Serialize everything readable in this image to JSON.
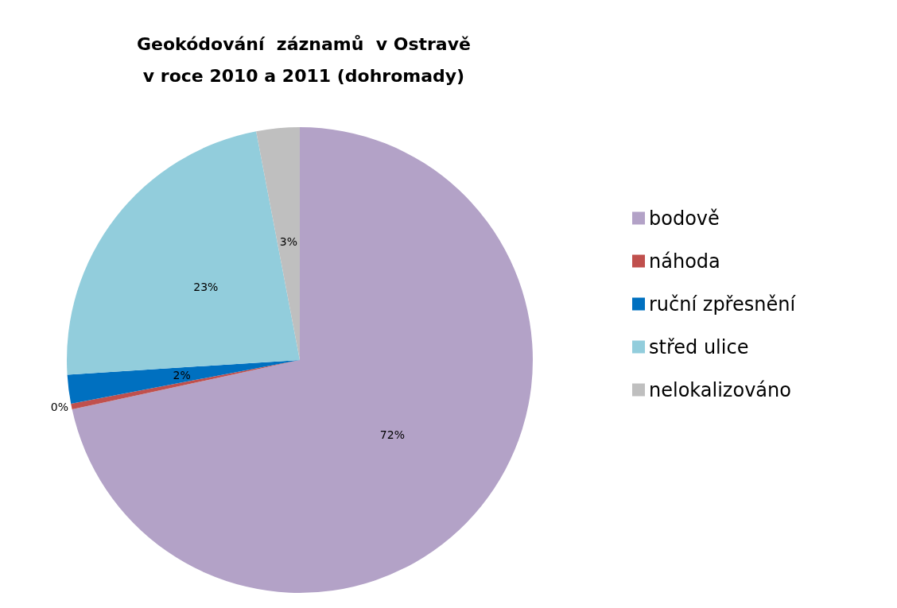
{
  "chart_data": {
    "type": "pie",
    "title": "Geokódování  záznamů  v Ostravě\nv roce 2010 a 2011 (dohromady)",
    "categories": [
      "bodově",
      "náhoda",
      "ruční zpřesnění",
      "střed ulice",
      "nelokalizováno"
    ],
    "values": [
      71.6,
      0.4,
      2,
      23,
      3
    ],
    "value_labels": [
      "72%",
      "0%",
      "2%",
      "23%",
      "3%"
    ],
    "colors": [
      "#b3a2c7",
      "#c0504d",
      "#0070c0",
      "#92cddc",
      "#bfbfbf"
    ],
    "legend": "right"
  }
}
